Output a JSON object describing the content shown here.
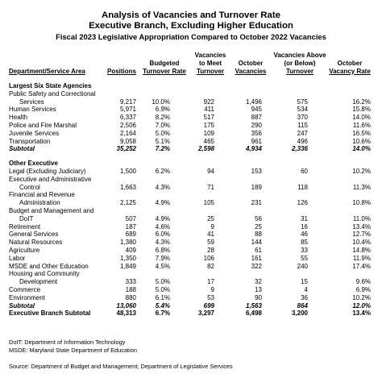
{
  "title": "Analysis of Vacancies and Turnover Rate",
  "subtitle1": "Executive Branch, Excluding Higher Education",
  "subtitle2": "Fiscal 2023 Legislative Appropriation Compared to October 2022 Vacancies",
  "headers": {
    "area": "Department/Service Area",
    "positions": "Positions",
    "budgeted1": "Budgeted",
    "budgeted2": "Turnover Rate",
    "vac1": "Vacancies",
    "vac2": "to Meet",
    "vac3": "Turnover",
    "oct1": "October",
    "oct2": "Vacancies",
    "above1": "Vacancies Above",
    "above2": "(or Below)",
    "above3": "Turnover",
    "rate1": "October",
    "rate2": "Vacancy Rate"
  },
  "rows": [
    {
      "kind": "section",
      "label": "Largest Six State Agencies"
    },
    {
      "kind": "label",
      "label": "Public Safety and Correctional"
    },
    {
      "kind": "indent",
      "label": "Services",
      "values": [
        "9,217",
        "10.0%",
        "922",
        "1,496",
        "575",
        "16.2%"
      ]
    },
    {
      "kind": "data",
      "label": "Human Services",
      "values": [
        "5,971",
        "6.9%",
        "411",
        "945",
        "534",
        "15.8%"
      ]
    },
    {
      "kind": "data",
      "label": "Health",
      "values": [
        "6,337",
        "8.2%",
        "517",
        "887",
        "370",
        "14.0%"
      ]
    },
    {
      "kind": "data",
      "label": "Police and Fire Marshal",
      "values": [
        "2,506",
        "7.0%",
        "175",
        "290",
        "115",
        "11.6%"
      ]
    },
    {
      "kind": "data",
      "label": "Juvenile Services",
      "values": [
        "2,164",
        "5.0%",
        "109",
        "356",
        "247",
        "16.5%"
      ]
    },
    {
      "kind": "data",
      "label": "Transportation",
      "values": [
        "9,058",
        "5.1%",
        "465",
        "961",
        "496",
        "10.6%"
      ]
    },
    {
      "kind": "subtotal",
      "label": "Subtotal",
      "values": [
        "35,252",
        "7.2%",
        "2,598",
        "4,934",
        "2,336",
        "14.0%"
      ]
    },
    {
      "kind": "gap"
    },
    {
      "kind": "section",
      "label": "Other Executive"
    },
    {
      "kind": "data",
      "label": "Legal (Excluding Judiciary)",
      "values": [
        "1,500",
        "6.2%",
        "94",
        "153",
        "60",
        "10.2%"
      ]
    },
    {
      "kind": "label",
      "label": "Executive and Administrative"
    },
    {
      "kind": "indent",
      "label": "Control",
      "values": [
        "1,663",
        "4.3%",
        "71",
        "189",
        "118",
        "11.3%"
      ]
    },
    {
      "kind": "label",
      "label": "Financial and Revenue"
    },
    {
      "kind": "indent",
      "label": "Administration",
      "values": [
        "2,125",
        "4.9%",
        "105",
        "231",
        "126",
        "10.8%"
      ]
    },
    {
      "kind": "label",
      "label": "Budget and Management and"
    },
    {
      "kind": "indent",
      "label": "DoIT",
      "values": [
        "507",
        "4.9%",
        "25",
        "56",
        "31",
        "11.0%"
      ]
    },
    {
      "kind": "data",
      "label": "Retirement",
      "values": [
        "187",
        "4.6%",
        "9",
        "25",
        "16",
        "13.4%"
      ]
    },
    {
      "kind": "data",
      "label": "General Services",
      "values": [
        "689",
        "6.0%",
        "41",
        "88",
        "46",
        "12.7%"
      ]
    },
    {
      "kind": "data",
      "label": "Natural Resources",
      "values": [
        "1,380",
        "4.3%",
        "59",
        "144",
        "85",
        "10.4%"
      ]
    },
    {
      "kind": "data",
      "label": "Agriculture",
      "values": [
        "409",
        "6.8%",
        "28",
        "61",
        "33",
        "14.8%"
      ]
    },
    {
      "kind": "data",
      "label": "Labor",
      "values": [
        "1,350",
        "7.9%",
        "106",
        "161",
        "55",
        "11.9%"
      ]
    },
    {
      "kind": "data",
      "label": "MSDE and Other Education",
      "values": [
        "1,849",
        "4.5%",
        "82",
        "322",
        "240",
        "17.4%"
      ]
    },
    {
      "kind": "label",
      "label": "Housing and Community"
    },
    {
      "kind": "indent",
      "label": "Development",
      "values": [
        "333",
        "5.0%",
        "17",
        "32",
        "15",
        "9.6%"
      ]
    },
    {
      "kind": "data",
      "label": "Commerce",
      "values": [
        "188",
        "5.0%",
        "9",
        "13",
        "4",
        "6.9%"
      ]
    },
    {
      "kind": "data",
      "label": "Environment",
      "values": [
        "880",
        "6.1%",
        "53",
        "90",
        "36",
        "10.2%"
      ]
    },
    {
      "kind": "subtotal",
      "label": "Subtotal",
      "values": [
        "13,060",
        "5.4%",
        "699",
        "1,563",
        "864",
        "12.0%"
      ]
    },
    {
      "kind": "total",
      "label": "Executive Branch Subtotal",
      "values": [
        "48,313",
        "6.7%",
        "3,297",
        "6,498",
        "3,200",
        "13.4%"
      ]
    }
  ],
  "notes": [
    "DoIT:  Department of Information Technology",
    "MSDE:  Maryland State Department of Education"
  ],
  "source": "Source:  Department of Budget and Management; Department of Legislative Services"
}
